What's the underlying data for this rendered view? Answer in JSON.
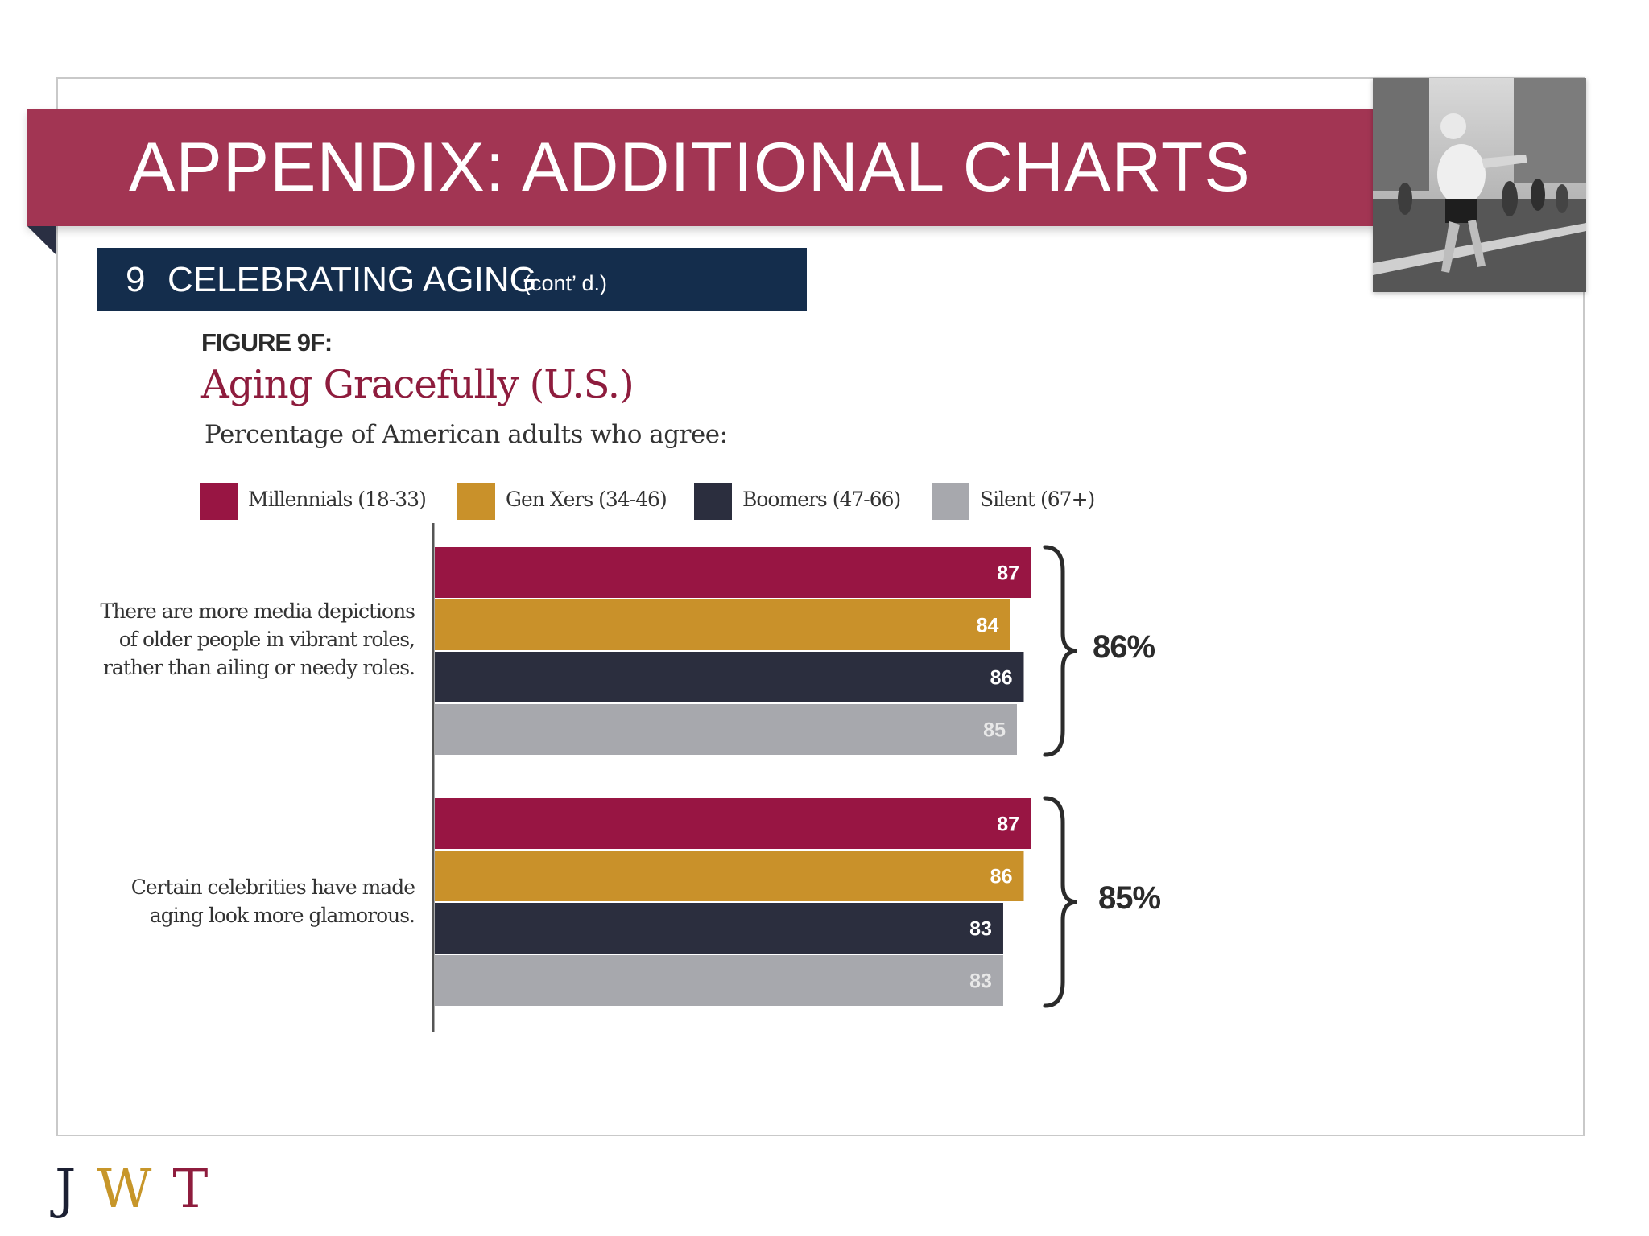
{
  "slide": {
    "title": "APPENDIX: ADDITIONAL CHARTS",
    "section_number": "9",
    "section_title": "CELEBRATING AGING",
    "section_subtitle": "(cont’ d.)"
  },
  "figure": {
    "label": "FIGURE 9F:"
  },
  "logo": {
    "letters": [
      "J",
      "W",
      "T"
    ],
    "colors": [
      "#1c2033",
      "#c7962a",
      "#8e1c3d"
    ]
  },
  "colors": {
    "banner": "#a23553",
    "section_bar": "#142d4c",
    "Millennials": "#981543",
    "GenXers": "#c9912a",
    "Boomers": "#2b2e3e",
    "Silent": "#a7a8ad"
  },
  "chart_data": {
    "type": "bar",
    "orientation": "horizontal",
    "title": "Aging Gracefully (U.S.)",
    "subtitle": "Percentage of American adults who agree:",
    "xlim": [
      0,
      100
    ],
    "legend_placement": "top",
    "grid": false,
    "categories": [
      {
        "label_lines": [
          "There are more media depictions",
          "of older people in vibrant roles,",
          "rather than ailing or needy roles."
        ],
        "total": "86%"
      },
      {
        "label_lines": [
          "Certain celebrities have made",
          "aging look more glamorous."
        ],
        "total": "85%"
      }
    ],
    "series": [
      {
        "name": "Millennials (18-33)",
        "color": "#981543",
        "values": [
          87,
          87
        ]
      },
      {
        "name": "Gen Xers (34-46)",
        "color": "#c9912a",
        "values": [
          84,
          86
        ]
      },
      {
        "name": "Boomers (47-66)",
        "color": "#2b2e3e",
        "values": [
          86,
          83
        ]
      },
      {
        "name": "Silent (67+)",
        "color": "#a7a8ad",
        "values": [
          85,
          83
        ]
      }
    ]
  }
}
